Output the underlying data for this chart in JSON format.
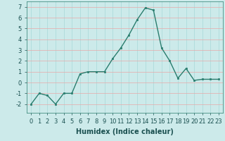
{
  "x": [
    0,
    1,
    2,
    3,
    4,
    5,
    6,
    7,
    8,
    9,
    10,
    11,
    12,
    13,
    14,
    15,
    16,
    17,
    18,
    19,
    20,
    21,
    22,
    23
  ],
  "y": [
    -2,
    -1,
    -1.2,
    -2,
    -1,
    -1,
    0.8,
    1.0,
    1.0,
    1.0,
    2.2,
    3.2,
    4.4,
    5.8,
    6.9,
    6.7,
    3.2,
    2.0,
    0.4,
    1.3,
    0.2,
    0.3,
    0.3,
    0.3
  ],
  "line_color": "#2a7d6e",
  "marker_color": "#2a7d6e",
  "bg_color": "#cceaea",
  "grid_color_h": "#e8a8a8",
  "grid_color_v": "#a8d8d8",
  "xlabel": "Humidex (Indice chaleur)",
  "ylim": [
    -2.8,
    7.5
  ],
  "xlim": [
    -0.5,
    23.5
  ],
  "yticks": [
    -2,
    -1,
    0,
    1,
    2,
    3,
    4,
    5,
    6,
    7
  ],
  "xticks": [
    0,
    1,
    2,
    3,
    4,
    5,
    6,
    7,
    8,
    9,
    10,
    11,
    12,
    13,
    14,
    15,
    16,
    17,
    18,
    19,
    20,
    21,
    22,
    23
  ],
  "xlabel_fontsize": 7,
  "tick_fontsize": 6,
  "line_width": 1.0,
  "marker_size": 2.0
}
